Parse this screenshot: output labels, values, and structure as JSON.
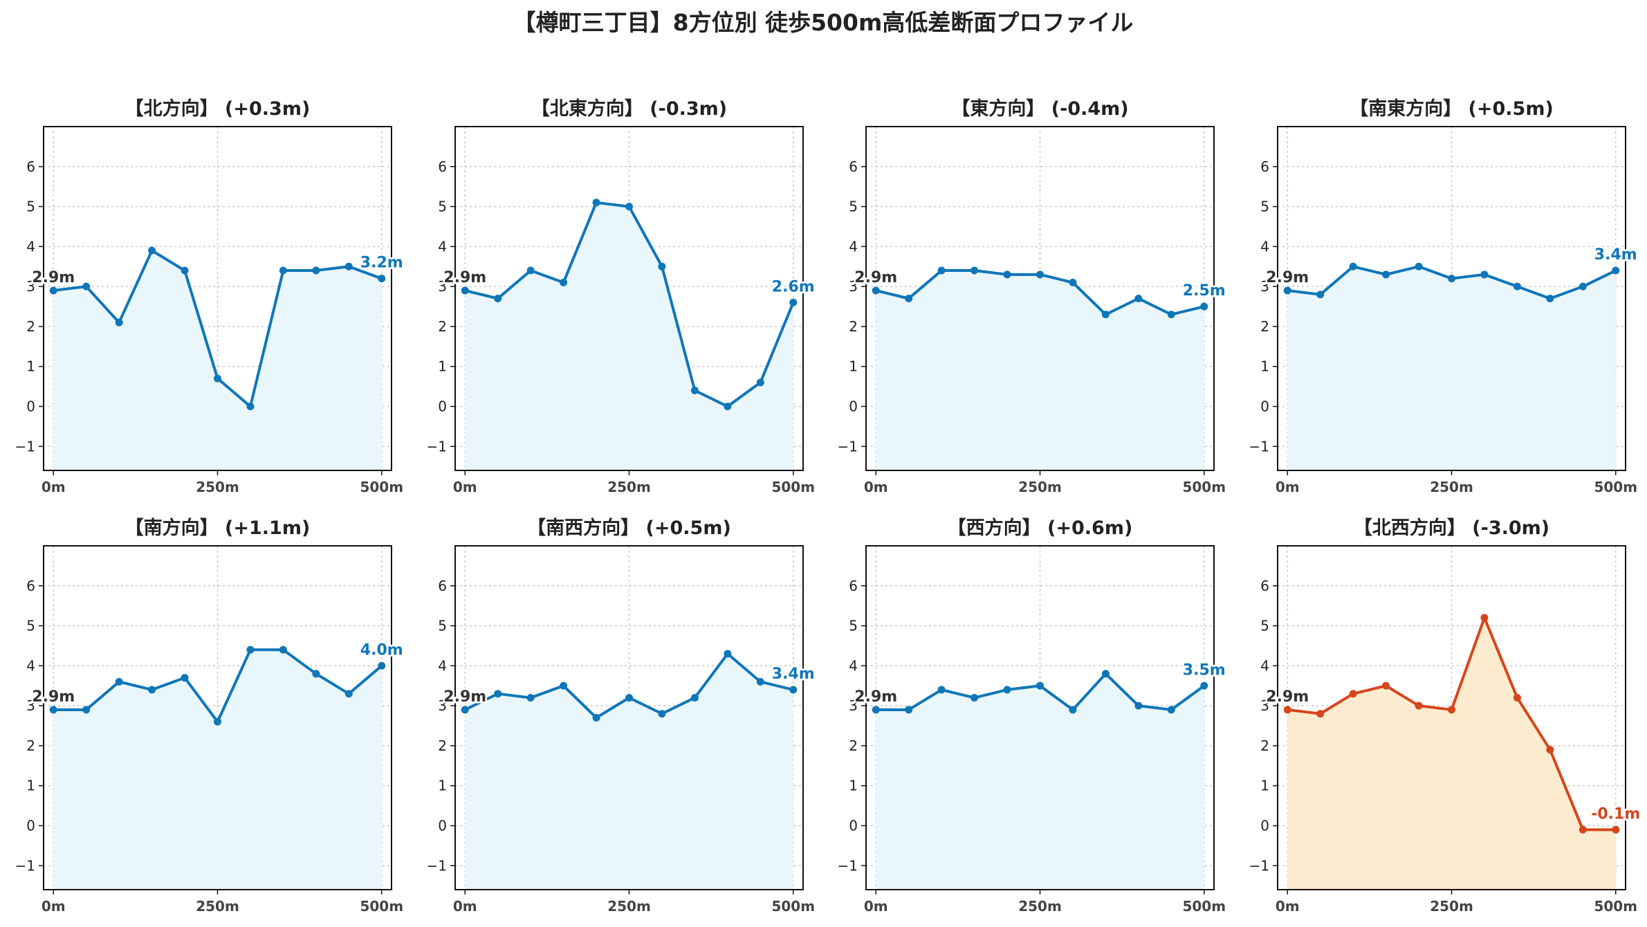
{
  "title": "【樽町三丁目】8方位別 徒歩500m高低差断面プロファイル",
  "colors": {
    "normal_line": "#0f76b8",
    "normal_fill": "#e9f6fb",
    "warn_line": "#d6451b",
    "warn_fill": "#fdebcf",
    "start_label": "#333333"
  },
  "chart_data": [
    {
      "type": "area",
      "title": "【北方向】 (+0.3m)",
      "highlight": false,
      "x": [
        0,
        50,
        100,
        150,
        200,
        250,
        300,
        350,
        400,
        450,
        500
      ],
      "values": [
        2.9,
        3.0,
        2.1,
        3.9,
        3.4,
        0.7,
        0.0,
        3.4,
        3.4,
        3.5,
        3.2
      ],
      "start_label": "2.9m",
      "end_label": "3.2m",
      "xticks": [
        "0m",
        "250m",
        "500m"
      ],
      "xtick_values": [
        0,
        250,
        500
      ],
      "yticks": [
        "−1",
        "0",
        "1",
        "2",
        "3",
        "4",
        "5",
        "6"
      ],
      "ytick_values": [
        -1,
        0,
        1,
        2,
        3,
        4,
        5,
        6
      ],
      "xlim": [
        -15,
        515
      ],
      "ylim": [
        -1.6,
        7.0
      ],
      "grid": true
    },
    {
      "type": "area",
      "title": "【北東方向】 (-0.3m)",
      "highlight": false,
      "x": [
        0,
        50,
        100,
        150,
        200,
        250,
        300,
        350,
        400,
        450,
        500
      ],
      "values": [
        2.9,
        2.7,
        3.4,
        3.1,
        5.1,
        5.0,
        3.5,
        0.4,
        0.0,
        0.6,
        2.6
      ],
      "start_label": "2.9m",
      "end_label": "2.6m",
      "xticks": [
        "0m",
        "250m",
        "500m"
      ],
      "xtick_values": [
        0,
        250,
        500
      ],
      "yticks": [
        "−1",
        "0",
        "1",
        "2",
        "3",
        "4",
        "5",
        "6"
      ],
      "ytick_values": [
        -1,
        0,
        1,
        2,
        3,
        4,
        5,
        6
      ],
      "xlim": [
        -15,
        515
      ],
      "ylim": [
        -1.6,
        7.0
      ],
      "grid": true
    },
    {
      "type": "area",
      "title": "【東方向】 (-0.4m)",
      "highlight": false,
      "x": [
        0,
        50,
        100,
        150,
        200,
        250,
        300,
        350,
        400,
        450,
        500
      ],
      "values": [
        2.9,
        2.7,
        3.4,
        3.4,
        3.3,
        3.3,
        3.1,
        2.3,
        2.7,
        2.3,
        2.5
      ],
      "start_label": "2.9m",
      "end_label": "2.5m",
      "xticks": [
        "0m",
        "250m",
        "500m"
      ],
      "xtick_values": [
        0,
        250,
        500
      ],
      "yticks": [
        "−1",
        "0",
        "1",
        "2",
        "3",
        "4",
        "5",
        "6"
      ],
      "ytick_values": [
        -1,
        0,
        1,
        2,
        3,
        4,
        5,
        6
      ],
      "xlim": [
        -15,
        515
      ],
      "ylim": [
        -1.6,
        7.0
      ],
      "grid": true
    },
    {
      "type": "area",
      "title": "【南東方向】 (+0.5m)",
      "highlight": false,
      "x": [
        0,
        50,
        100,
        150,
        200,
        250,
        300,
        350,
        400,
        450,
        500
      ],
      "values": [
        2.9,
        2.8,
        3.5,
        3.3,
        3.5,
        3.2,
        3.3,
        3.0,
        2.7,
        3.0,
        3.4
      ],
      "start_label": "2.9m",
      "end_label": "3.4m",
      "xticks": [
        "0m",
        "250m",
        "500m"
      ],
      "xtick_values": [
        0,
        250,
        500
      ],
      "yticks": [
        "−1",
        "0",
        "1",
        "2",
        "3",
        "4",
        "5",
        "6"
      ],
      "ytick_values": [
        -1,
        0,
        1,
        2,
        3,
        4,
        5,
        6
      ],
      "xlim": [
        -15,
        515
      ],
      "ylim": [
        -1.6,
        7.0
      ],
      "grid": true
    },
    {
      "type": "area",
      "title": "【南方向】 (+1.1m)",
      "highlight": false,
      "x": [
        0,
        50,
        100,
        150,
        200,
        250,
        300,
        350,
        400,
        450,
        500
      ],
      "values": [
        2.9,
        2.9,
        3.6,
        3.4,
        3.7,
        2.6,
        4.4,
        4.4,
        3.8,
        3.3,
        4.0
      ],
      "start_label": "2.9m",
      "end_label": "4.0m",
      "xticks": [
        "0m",
        "250m",
        "500m"
      ],
      "xtick_values": [
        0,
        250,
        500
      ],
      "yticks": [
        "−1",
        "0",
        "1",
        "2",
        "3",
        "4",
        "5",
        "6"
      ],
      "ytick_values": [
        -1,
        0,
        1,
        2,
        3,
        4,
        5,
        6
      ],
      "xlim": [
        -15,
        515
      ],
      "ylim": [
        -1.6,
        7.0
      ],
      "grid": true
    },
    {
      "type": "area",
      "title": "【南西方向】 (+0.5m)",
      "highlight": false,
      "x": [
        0,
        50,
        100,
        150,
        200,
        250,
        300,
        350,
        400,
        450,
        500
      ],
      "values": [
        2.9,
        3.3,
        3.2,
        3.5,
        2.7,
        3.2,
        2.8,
        3.2,
        4.3,
        3.6,
        3.4
      ],
      "start_label": "2.9m",
      "end_label": "3.4m",
      "xticks": [
        "0m",
        "250m",
        "500m"
      ],
      "xtick_values": [
        0,
        250,
        500
      ],
      "yticks": [
        "−1",
        "0",
        "1",
        "2",
        "3",
        "4",
        "5",
        "6"
      ],
      "ytick_values": [
        -1,
        0,
        1,
        2,
        3,
        4,
        5,
        6
      ],
      "xlim": [
        -15,
        515
      ],
      "ylim": [
        -1.6,
        7.0
      ],
      "grid": true
    },
    {
      "type": "area",
      "title": "【西方向】 (+0.6m)",
      "highlight": false,
      "x": [
        0,
        50,
        100,
        150,
        200,
        250,
        300,
        350,
        400,
        450,
        500
      ],
      "values": [
        2.9,
        2.9,
        3.4,
        3.2,
        3.4,
        3.5,
        2.9,
        3.8,
        3.0,
        2.9,
        3.5
      ],
      "start_label": "2.9m",
      "end_label": "3.5m",
      "xticks": [
        "0m",
        "250m",
        "500m"
      ],
      "xtick_values": [
        0,
        250,
        500
      ],
      "yticks": [
        "−1",
        "0",
        "1",
        "2",
        "3",
        "4",
        "5",
        "6"
      ],
      "ytick_values": [
        -1,
        0,
        1,
        2,
        3,
        4,
        5,
        6
      ],
      "xlim": [
        -15,
        515
      ],
      "ylim": [
        -1.6,
        7.0
      ],
      "grid": true
    },
    {
      "type": "area",
      "title": "【北西方向】 (-3.0m)",
      "highlight": true,
      "x": [
        0,
        50,
        100,
        150,
        200,
        250,
        300,
        350,
        400,
        450,
        500
      ],
      "values": [
        2.9,
        2.8,
        3.3,
        3.5,
        3.0,
        2.9,
        5.2,
        3.2,
        1.9,
        -0.1,
        -0.1
      ],
      "start_label": "2.9m",
      "end_label": "-0.1m",
      "xticks": [
        "0m",
        "250m",
        "500m"
      ],
      "xtick_values": [
        0,
        250,
        500
      ],
      "yticks": [
        "−1",
        "0",
        "1",
        "2",
        "3",
        "4",
        "5",
        "6"
      ],
      "ytick_values": [
        -1,
        0,
        1,
        2,
        3,
        4,
        5,
        6
      ],
      "xlim": [
        -15,
        515
      ],
      "ylim": [
        -1.6,
        7.0
      ],
      "grid": true
    }
  ]
}
